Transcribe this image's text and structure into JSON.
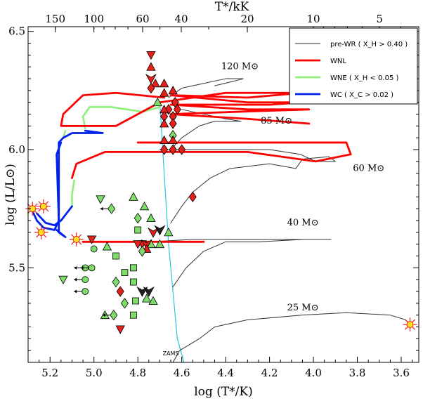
{
  "chart_data": {
    "type": "scatter",
    "xlabel": "log (T*/K)",
    "ylabel": "log (L/L⊙)",
    "top_xlabel": "T*/kK",
    "xlim": [
      5.3,
      3.52
    ],
    "ylim": [
      5.1,
      6.52
    ],
    "x_ticks": [
      5.2,
      5.0,
      4.8,
      4.6,
      4.4,
      4.2,
      4.0,
      3.8,
      3.6
    ],
    "x_tick_labels": [
      "5.2",
      "5.0",
      "4.8",
      "4.6",
      "4.4",
      "4.2",
      "4.0",
      "3.8",
      "3.6"
    ],
    "y_ticks": [
      5.5,
      6.0,
      6.5
    ],
    "y_tick_labels": [
      "5.5",
      "6.0",
      "6.5"
    ],
    "top_ticks_kK": [
      150,
      100,
      60,
      40,
      20,
      10,
      5
    ],
    "top_tick_labels": [
      "150",
      "100",
      "60",
      "40",
      "20",
      "10",
      "5"
    ],
    "legend": {
      "placement": "top-right",
      "entries": [
        {
          "label": "pre-WR ( X_H > 0.40 )",
          "color": "#555555"
        },
        {
          "label": "WNL",
          "color": "#ff0000"
        },
        {
          "label": "WNE ( X_H < 0.05 )",
          "color": "#90ee70"
        },
        {
          "label": "WC ( X_C > 0.02 )",
          "color": "#0000ee"
        }
      ]
    },
    "track_labels": [
      {
        "text": "120 M⊙",
        "x": 4.42,
        "y": 6.34
      },
      {
        "text": "85 M⊙",
        "x": 4.24,
        "y": 6.11
      },
      {
        "text": "60 M⊙",
        "x": 3.82,
        "y": 5.91
      },
      {
        "text": "40 M⊙",
        "x": 4.12,
        "y": 5.68
      },
      {
        "text": "25 M⊙",
        "x": 4.12,
        "y": 5.32
      }
    ],
    "zams_label": "ZAMS",
    "zams_line": [
      [
        4.7,
        6.2
      ],
      [
        4.66,
        5.6
      ],
      [
        4.62,
        5.2
      ],
      [
        4.59,
        5.1
      ]
    ],
    "tracks": [
      {
        "mass": "25",
        "category": "pre-WR",
        "points": [
          [
            4.64,
            5.1
          ],
          [
            4.61,
            5.15
          ],
          [
            4.52,
            5.2
          ],
          [
            4.45,
            5.25
          ],
          [
            4.3,
            5.28
          ],
          [
            4.05,
            5.3
          ],
          [
            3.85,
            5.31
          ],
          [
            3.65,
            5.3
          ],
          [
            3.58,
            5.28
          ],
          [
            3.56,
            5.26
          ]
        ]
      },
      {
        "mass": "40",
        "category": "pre-WR",
        "points": [
          [
            4.64,
            5.42
          ],
          [
            4.58,
            5.5
          ],
          [
            4.5,
            5.57
          ],
          [
            4.4,
            5.61
          ],
          [
            4.25,
            5.61
          ],
          [
            4.05,
            5.62
          ],
          [
            3.92,
            5.62
          ],
          [
            3.95,
            5.62
          ],
          [
            4.15,
            5.62
          ],
          [
            4.55,
            5.62
          ],
          [
            4.75,
            5.61
          ],
          [
            5.05,
            5.61
          ]
        ]
      },
      {
        "mass": "60",
        "category": "pre-WR",
        "points": [
          [
            4.65,
            5.69
          ],
          [
            4.6,
            5.76
          ],
          [
            4.55,
            5.82
          ],
          [
            4.47,
            5.88
          ],
          [
            4.38,
            5.92
          ],
          [
            4.2,
            5.94
          ],
          [
            4.08,
            5.92
          ],
          [
            4.05,
            5.96
          ],
          [
            3.93,
            5.97
          ],
          [
            3.9,
            5.95
          ],
          [
            3.99,
            5.95
          ],
          [
            4.06,
            5.98
          ],
          [
            4.2,
            6.0
          ],
          [
            4.5,
            6.0
          ],
          [
            4.7,
            6.0
          ]
        ]
      },
      {
        "mass": "85",
        "category": "pre-WR",
        "points": [
          [
            4.66,
            5.99
          ],
          [
            4.6,
            6.05
          ],
          [
            4.52,
            6.1
          ],
          [
            4.45,
            6.12
          ],
          [
            4.33,
            6.12
          ],
          [
            4.4,
            6.13
          ],
          [
            4.6,
            6.17
          ]
        ]
      },
      {
        "mass": "120",
        "category": "pre-WR",
        "points": [
          [
            4.66,
            6.22
          ],
          [
            4.6,
            6.26
          ],
          [
            4.5,
            6.28
          ],
          [
            4.4,
            6.3
          ],
          [
            4.32,
            6.3
          ],
          [
            4.36,
            6.29
          ],
          [
            4.45,
            6.27
          ]
        ]
      },
      {
        "mass": "120",
        "category": "WNL",
        "points": [
          [
            4.68,
            6.22
          ],
          [
            4.9,
            6.24
          ],
          [
            5.05,
            6.23
          ],
          [
            5.14,
            6.15
          ],
          [
            5.15,
            6.1
          ],
          [
            4.9,
            6.1
          ],
          [
            4.7,
            6.2
          ],
          [
            4.4,
            6.24
          ],
          [
            4.05,
            6.24
          ],
          [
            4.3,
            6.22
          ],
          [
            4.65,
            6.23
          ],
          [
            4.3,
            6.2
          ],
          [
            4.05,
            6.2
          ],
          [
            4.2,
            6.19
          ],
          [
            4.65,
            6.19
          ],
          [
            4.3,
            6.17
          ],
          [
            4.02,
            6.17
          ],
          [
            4.35,
            6.16
          ],
          [
            4.65,
            6.15
          ],
          [
            4.3,
            6.13
          ],
          [
            4.02,
            6.11
          ]
        ]
      },
      {
        "mass": "85",
        "category": "WNL",
        "points": [
          [
            4.8,
            6.03
          ],
          [
            4.6,
            6.03
          ],
          [
            4.3,
            6.03
          ],
          [
            3.85,
            6.03
          ],
          [
            3.83,
            5.98
          ],
          [
            3.99,
            5.95
          ],
          [
            4.3,
            5.99
          ],
          [
            4.68,
            5.99
          ],
          [
            4.95,
            5.99
          ],
          [
            5.08,
            5.94
          ],
          [
            5.1,
            5.88
          ]
        ]
      },
      {
        "mass": "60",
        "category": "WNL",
        "points": [
          [
            5.05,
            5.61
          ],
          [
            4.7,
            5.61
          ],
          [
            4.5,
            5.61
          ]
        ]
      },
      {
        "mass": "120",
        "category": "WNE",
        "points": [
          [
            4.7,
            6.18
          ],
          [
            4.78,
            6.16
          ],
          [
            4.92,
            6.18
          ],
          [
            5.02,
            6.18
          ],
          [
            5.05,
            6.14
          ],
          [
            5.04,
            6.09
          ]
        ]
      },
      {
        "mass": "85",
        "category": "WNE",
        "points": [
          [
            5.14,
            6.05
          ],
          [
            5.13,
            6.08
          ]
        ]
      },
      {
        "mass": "60",
        "category": "WNE",
        "points": [
          [
            5.09,
            5.87
          ],
          [
            5.1,
            5.81
          ],
          [
            5.1,
            5.76
          ]
        ]
      },
      {
        "mass": "120",
        "category": "WC",
        "points": [
          [
            5.04,
            6.08
          ],
          [
            4.96,
            6.07
          ],
          [
            5.1,
            6.07
          ],
          [
            5.14,
            6.05
          ],
          [
            5.16,
            6.03
          ],
          [
            5.16,
            5.98
          ],
          [
            5.16,
            5.65
          ],
          [
            5.13,
            5.63
          ],
          [
            5.17,
            5.66
          ]
        ]
      },
      {
        "mass": "85",
        "category": "WC",
        "points": [
          [
            5.15,
            6.03
          ],
          [
            5.17,
            5.98
          ],
          [
            5.16,
            5.7
          ],
          [
            5.18,
            5.66
          ],
          [
            5.23,
            5.67
          ],
          [
            5.26,
            5.7
          ],
          [
            5.28,
            5.74
          ]
        ]
      },
      {
        "mass": "60",
        "category": "WC",
        "points": [
          [
            5.1,
            5.76
          ],
          [
            5.15,
            5.7
          ],
          [
            5.18,
            5.68
          ],
          [
            5.22,
            5.69
          ],
          [
            5.26,
            5.73
          ]
        ]
      }
    ],
    "sn_markers": [
      {
        "x": 5.28,
        "y": 5.75
      },
      {
        "x": 5.23,
        "y": 5.76
      },
      {
        "x": 5.24,
        "y": 5.65
      },
      {
        "x": 5.08,
        "y": 5.62
      },
      {
        "x": 3.56,
        "y": 5.26
      }
    ],
    "stars": [
      {
        "shape": "tri-down",
        "color": "red",
        "x": 4.74,
        "y": 6.4
      },
      {
        "shape": "triangle",
        "color": "red",
        "x": 4.74,
        "y": 6.35
      },
      {
        "shape": "arrow-down",
        "color": "red",
        "x": 4.74,
        "y": 6.3
      },
      {
        "shape": "triangle",
        "color": "red",
        "x": 4.72,
        "y": 6.28
      },
      {
        "shape": "triangle",
        "color": "red",
        "x": 4.68,
        "y": 6.28
      },
      {
        "shape": "diamond",
        "color": "red",
        "x": 4.74,
        "y": 6.26
      },
      {
        "shape": "triangle",
        "color": "red",
        "x": 4.64,
        "y": 6.25
      },
      {
        "shape": "triangle",
        "color": "red",
        "x": 4.68,
        "y": 6.24
      },
      {
        "shape": "diamond",
        "color": "red",
        "x": 4.63,
        "y": 6.2
      },
      {
        "shape": "diamond",
        "color": "red",
        "x": 4.66,
        "y": 6.17
      },
      {
        "shape": "diamond",
        "color": "red",
        "x": 4.62,
        "y": 6.17
      },
      {
        "shape": "triangle",
        "color": "red",
        "x": 4.68,
        "y": 6.17
      },
      {
        "shape": "diamond",
        "color": "red",
        "x": 4.68,
        "y": 6.14
      },
      {
        "shape": "diamond",
        "color": "red",
        "x": 4.64,
        "y": 6.14
      },
      {
        "shape": "triangle",
        "color": "red",
        "x": 4.68,
        "y": 6.11
      },
      {
        "shape": "diamond",
        "color": "red",
        "x": 4.64,
        "y": 6.11
      },
      {
        "shape": "triangle",
        "color": "green",
        "x": 4.71,
        "y": 6.2
      },
      {
        "shape": "diamond",
        "color": "green",
        "x": 4.64,
        "y": 6.06
      },
      {
        "shape": "triangle",
        "color": "red",
        "x": 4.64,
        "y": 6.04
      },
      {
        "shape": "triangle",
        "color": "red",
        "x": 4.68,
        "y": 6.04
      },
      {
        "shape": "diamond",
        "color": "red",
        "x": 4.68,
        "y": 6.0
      },
      {
        "shape": "diamond",
        "color": "red",
        "x": 4.64,
        "y": 6.0
      },
      {
        "shape": "diamond",
        "color": "red",
        "x": 4.6,
        "y": 6.0
      },
      {
        "shape": "diamond",
        "color": "red",
        "x": 4.55,
        "y": 5.8
      },
      {
        "shape": "tri-down",
        "color": "green",
        "x": 4.97,
        "y": 5.79
      },
      {
        "shape": "triangle",
        "color": "green",
        "x": 4.82,
        "y": 5.8
      },
      {
        "shape": "diamond-arrow",
        "color": "green",
        "x": 4.92,
        "y": 5.75
      },
      {
        "shape": "diamond",
        "color": "green",
        "x": 4.8,
        "y": 5.71
      },
      {
        "shape": "triangle",
        "color": "green",
        "x": 4.77,
        "y": 5.76
      },
      {
        "shape": "triangle",
        "color": "green",
        "x": 4.74,
        "y": 5.71
      },
      {
        "shape": "square",
        "color": "green",
        "x": 4.8,
        "y": 5.66
      },
      {
        "shape": "arrow-down",
        "color": "black",
        "x": 4.7,
        "y": 5.66
      },
      {
        "shape": "arrow-down",
        "color": "red",
        "x": 4.73,
        "y": 5.65
      },
      {
        "shape": "triangle",
        "color": "green",
        "x": 4.66,
        "y": 5.65
      },
      {
        "shape": "triangle",
        "color": "green",
        "x": 4.74,
        "y": 5.6
      },
      {
        "shape": "tri-down",
        "color": "red",
        "x": 5.01,
        "y": 5.62
      },
      {
        "shape": "circle",
        "color": "green",
        "x": 5.0,
        "y": 5.58
      },
      {
        "shape": "triangle",
        "color": "green",
        "x": 4.94,
        "y": 5.59
      },
      {
        "shape": "tri-down",
        "color": "red",
        "x": 4.78,
        "y": 5.6
      },
      {
        "shape": "arrow-down",
        "color": "red",
        "x": 4.76,
        "y": 5.6
      },
      {
        "shape": "tri-down",
        "color": "red",
        "x": 4.8,
        "y": 5.6
      },
      {
        "shape": "triangle",
        "color": "red",
        "x": 4.76,
        "y": 5.58
      },
      {
        "shape": "triangle",
        "color": "green",
        "x": 4.7,
        "y": 5.6
      },
      {
        "shape": "diamond",
        "color": "green",
        "x": 4.78,
        "y": 5.57
      },
      {
        "shape": "square",
        "color": "green",
        "x": 4.9,
        "y": 5.55
      },
      {
        "shape": "square",
        "color": "green",
        "x": 4.82,
        "y": 5.5
      },
      {
        "shape": "square",
        "color": "green",
        "x": 4.86,
        "y": 5.48
      },
      {
        "shape": "circle-arrow",
        "color": "green",
        "x": 5.04,
        "y": 5.5
      },
      {
        "shape": "circle-arrow",
        "color": "green",
        "x": 5.01,
        "y": 5.5
      },
      {
        "shape": "tri-down",
        "color": "green",
        "x": 5.14,
        "y": 5.45
      },
      {
        "shape": "circle-arrow",
        "color": "green",
        "x": 5.04,
        "y": 5.45
      },
      {
        "shape": "diamond",
        "color": "green",
        "x": 4.9,
        "y": 5.44
      },
      {
        "shape": "square",
        "color": "green",
        "x": 4.82,
        "y": 5.44
      },
      {
        "shape": "circle-arrow",
        "color": "green",
        "x": 5.04,
        "y": 5.4
      },
      {
        "shape": "diamond",
        "color": "red",
        "x": 4.88,
        "y": 5.4
      },
      {
        "shape": "arrow-down",
        "color": "black",
        "x": 4.78,
        "y": 5.4
      },
      {
        "shape": "arrow-down",
        "color": "black",
        "x": 4.75,
        "y": 5.4
      },
      {
        "shape": "triangle",
        "color": "green",
        "x": 4.76,
        "y": 5.37
      },
      {
        "shape": "diamond",
        "color": "green",
        "x": 4.86,
        "y": 5.35
      },
      {
        "shape": "square",
        "color": "green",
        "x": 4.81,
        "y": 5.36
      },
      {
        "shape": "triangle",
        "color": "green",
        "x": 4.73,
        "y": 5.36
      },
      {
        "shape": "triangle",
        "color": "green",
        "x": 4.95,
        "y": 5.3
      },
      {
        "shape": "diamond-arrow",
        "color": "green",
        "x": 4.91,
        "y": 5.3
      },
      {
        "shape": "square",
        "color": "green",
        "x": 4.82,
        "y": 5.3
      },
      {
        "shape": "tri-down",
        "color": "red",
        "x": 4.88,
        "y": 5.24
      }
    ]
  }
}
